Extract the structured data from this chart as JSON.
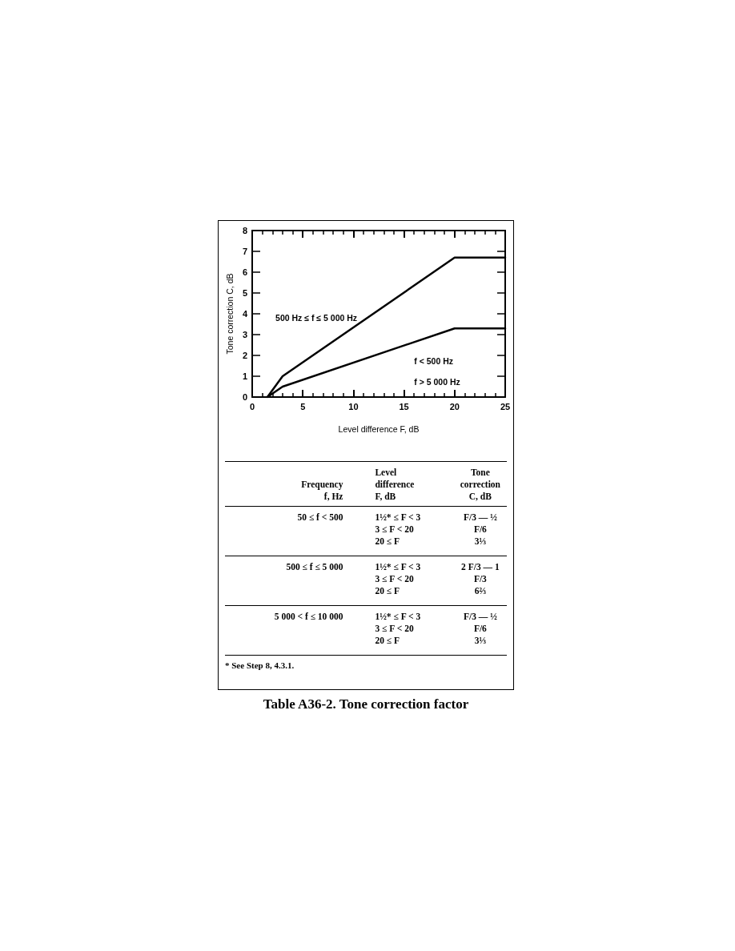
{
  "chart_data": {
    "type": "line",
    "title": "Table A36-2. Tone correction factor",
    "xlabel": "Level difference F, dB",
    "ylabel": "Tone correction C, dB",
    "series": [
      {
        "name": "500 Hz ≤ f ≤ 5 000 Hz",
        "color": "#000000",
        "x": [
          1.5,
          3,
          20,
          25
        ],
        "values": [
          0,
          1,
          6.7,
          6.7
        ]
      },
      {
        "name": "f < 500 Hz\nf > 5 000 Hz",
        "color": "#000000",
        "x": [
          1.5,
          3,
          20,
          25
        ],
        "values": [
          0,
          0.5,
          3.3,
          3.3
        ]
      }
    ],
    "xlim": [
      0,
      25
    ],
    "xticks": [
      0,
      5,
      10,
      15,
      20,
      25
    ],
    "ylim": [
      0,
      8
    ],
    "yticks": [
      0,
      1,
      2,
      3,
      4,
      5,
      6,
      7,
      8
    ],
    "grid": false,
    "legend": false,
    "marker": "none",
    "line_style": "solid",
    "annotations": [
      "Frequency\nf, Hz",
      "Level\ndifference\nF, dB",
      "Tone\ncorrection\nC, dB",
      "50 ≤ f < 500",
      "1½* ≤ F < 3\n3 ≤ F < 20\n20 ≤ F",
      "F/3 — ½\nF/6\n3⅓",
      "500 ≤ f ≤ 5 000",
      "1½* ≤ F < 3\n3 ≤ F < 20\n20 ≤ F",
      "2 F/3 — 1\nF/3\n6⅔",
      "5 000 < f ≤ 10 000",
      "1½* ≤ F < 3\n3 ≤ F < 20\n20 ≤ F",
      "F/3 — ½\nF/6\n3⅓",
      "* See Step 8, 4.3.1."
    ]
  }
}
